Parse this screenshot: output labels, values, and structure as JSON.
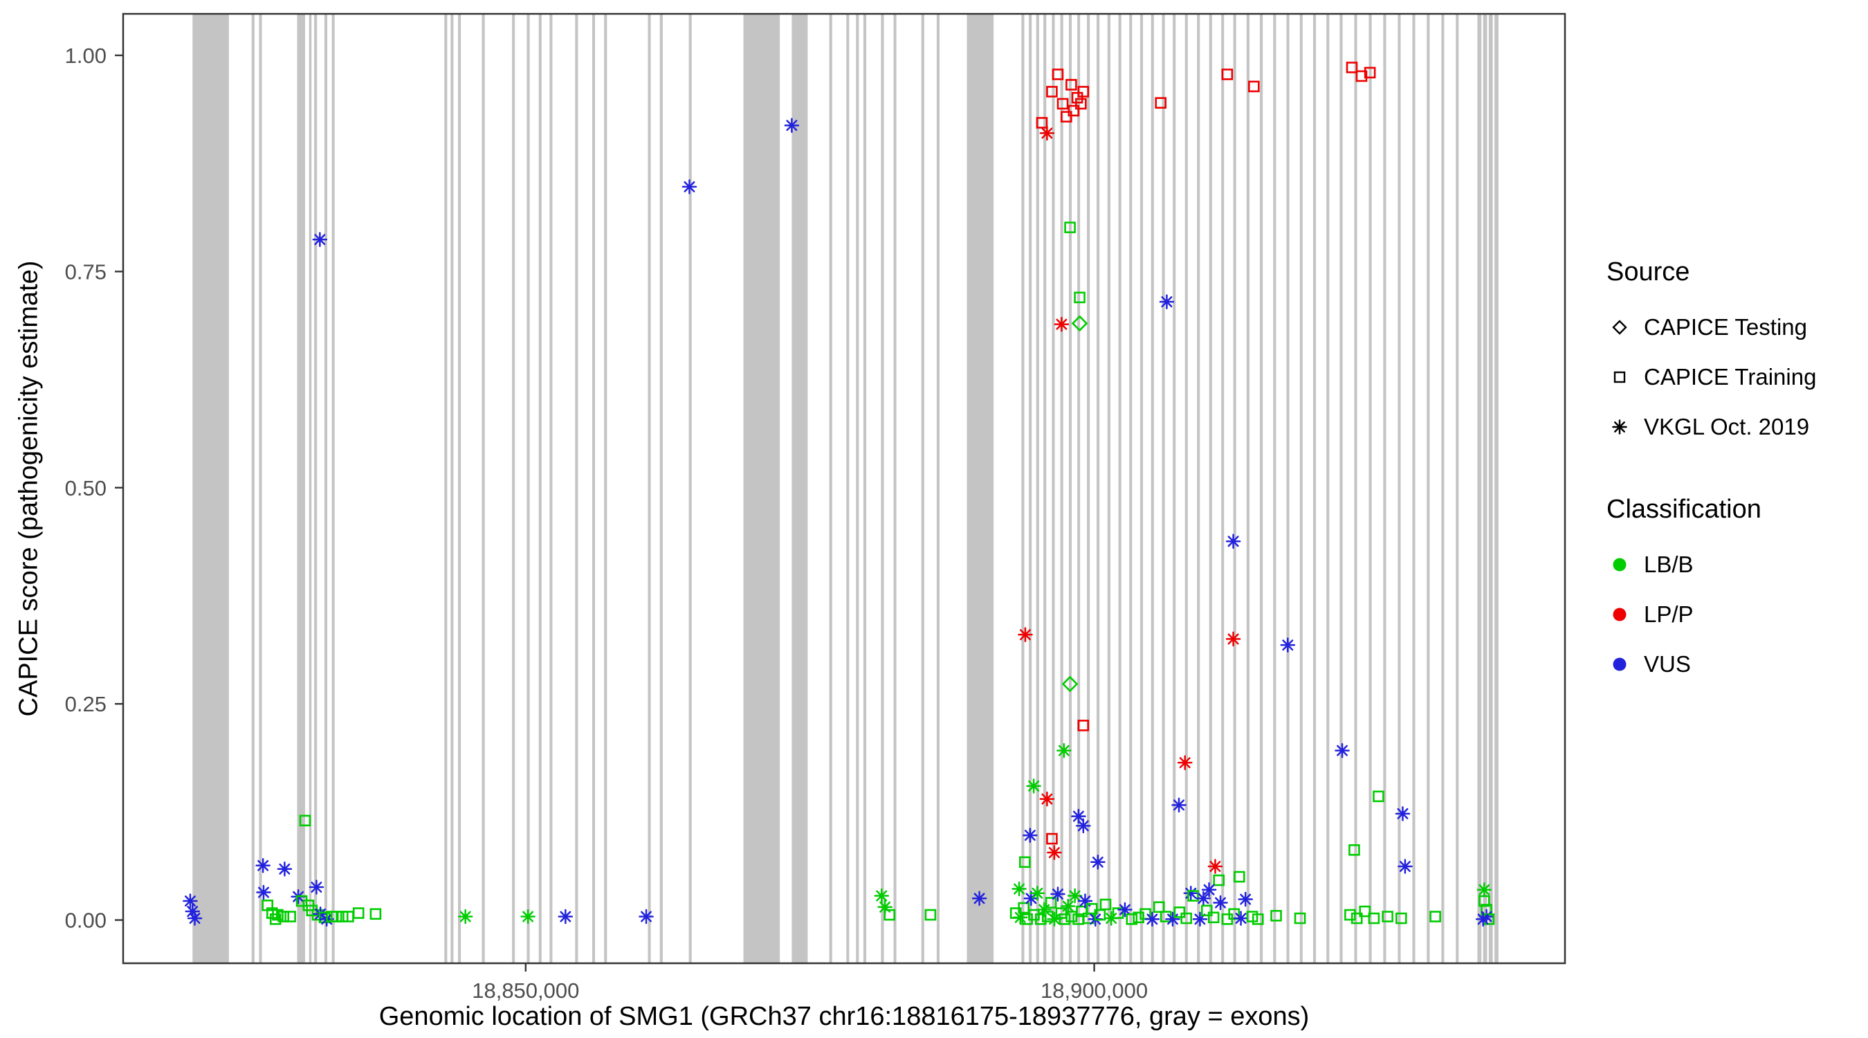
{
  "chart_data": {
    "type": "scatter",
    "title": "",
    "xlabel": "Genomic location of SMG1 (GRCh37 chr16:18816175-18937776, gray = exons)",
    "ylabel": "CAPICE score (pathogenicity estimate)",
    "x_domain": [
      18814600,
      18941400
    ],
    "y_domain": [
      -0.05,
      1.048
    ],
    "x_ticks": [
      {
        "value": 18850000,
        "label": "18,850,000"
      },
      {
        "value": 18900000,
        "label": "18,900,000"
      }
    ],
    "y_ticks": [
      {
        "value": 0.0,
        "label": "0.00"
      },
      {
        "value": 0.25,
        "label": "0.25"
      },
      {
        "value": 0.5,
        "label": "0.50"
      },
      {
        "value": 0.75,
        "label": "0.75"
      },
      {
        "value": 1.0,
        "label": "1.00"
      }
    ],
    "grid": false,
    "legend_position": "right",
    "exon_color": "#C4C4C4",
    "classification_colors": {
      "LB/B": "#00CC00",
      "LP/P": "#EE0000",
      "VUS": "#2222DD"
    },
    "class_codes": {
      "g": "LB/B",
      "r": "LP/P",
      "b": "VUS"
    },
    "shape_codes": {
      "d": "CAPICE Testing (diamond)",
      "s": "CAPICE Training (square)",
      "a": "VKGL Oct. 2019 (asterisk)"
    },
    "point_format": [
      "genomic_position",
      "capice_score",
      "shape_code",
      "class_code"
    ],
    "exons": [
      [
        18820700,
        18823900
      ],
      [
        18825900,
        18826150
      ],
      [
        18826550,
        18826800
      ],
      [
        18829900,
        18830600
      ],
      [
        18830950,
        18831150
      ],
      [
        18831400,
        18831650
      ],
      [
        18832300,
        18832550
      ],
      [
        18832950,
        18833200
      ],
      [
        18842850,
        18843100
      ],
      [
        18843400,
        18843650
      ],
      [
        18844050,
        18844300
      ],
      [
        18846150,
        18846400
      ],
      [
        18848800,
        18849050
      ],
      [
        18850100,
        18850350
      ],
      [
        18851150,
        18851400
      ],
      [
        18852100,
        18852350
      ],
      [
        18854350,
        18854600
      ],
      [
        18855850,
        18856100
      ],
      [
        18856900,
        18857150
      ],
      [
        18860750,
        18861000
      ],
      [
        18861800,
        18862050
      ],
      [
        18864350,
        18864600
      ],
      [
        18869150,
        18872350
      ],
      [
        18873400,
        18874800
      ],
      [
        18876700,
        18876950
      ],
      [
        18878200,
        18878450
      ],
      [
        18879050,
        18879300
      ],
      [
        18879700,
        18879950
      ],
      [
        18881250,
        18881500
      ],
      [
        18882350,
        18882600
      ],
      [
        18884800,
        18885050
      ],
      [
        18886150,
        18886400
      ],
      [
        18888800,
        18891150
      ],
      [
        18893600,
        18893850
      ],
      [
        18894250,
        18894500
      ],
      [
        18894900,
        18895150
      ],
      [
        18895530,
        18895780
      ],
      [
        18896280,
        18896530
      ],
      [
        18897020,
        18897270
      ],
      [
        18897770,
        18898020
      ],
      [
        18898510,
        18898760
      ],
      [
        18899360,
        18899610
      ],
      [
        18900210,
        18900460
      ],
      [
        18901170,
        18901420
      ],
      [
        18902130,
        18902380
      ],
      [
        18903080,
        18903330
      ],
      [
        18904040,
        18904290
      ],
      [
        18905000,
        18905250
      ],
      [
        18905960,
        18906210
      ],
      [
        18906910,
        18907160
      ],
      [
        18907980,
        18908230
      ],
      [
        18909040,
        18909290
      ],
      [
        18910110,
        18910360
      ],
      [
        18911170,
        18911420
      ],
      [
        18912230,
        18912480
      ],
      [
        18913400,
        18913650
      ],
      [
        18914570,
        18914820
      ],
      [
        18915740,
        18915990
      ],
      [
        18916910,
        18917160
      ],
      [
        18918080,
        18918330
      ],
      [
        18919250,
        18919500
      ],
      [
        18920420,
        18920670
      ],
      [
        18921590,
        18921840
      ],
      [
        18922870,
        18923120
      ],
      [
        18924150,
        18924400
      ],
      [
        18925420,
        18925670
      ],
      [
        18926700,
        18926950
      ],
      [
        18927980,
        18928230
      ],
      [
        18929250,
        18929500
      ],
      [
        18930530,
        18930780
      ],
      [
        18931800,
        18932050
      ],
      [
        18933700,
        18934050
      ],
      [
        18934200,
        18934550
      ],
      [
        18934700,
        18935050
      ],
      [
        18935200,
        18935550
      ]
    ],
    "points": [
      [
        18820500,
        0.022,
        "a",
        "b"
      ],
      [
        18820700,
        0.01,
        "a",
        "b"
      ],
      [
        18820900,
        0.002,
        "a",
        "b"
      ],
      [
        18826900,
        0.063,
        "a",
        "b"
      ],
      [
        18828800,
        0.059,
        "a",
        "b"
      ],
      [
        18826950,
        0.032,
        "a",
        "b"
      ],
      [
        18827300,
        0.017,
        "s",
        "g"
      ],
      [
        18827700,
        0.008,
        "s",
        "g"
      ],
      [
        18828200,
        0.006,
        "s",
        "g"
      ],
      [
        18828700,
        0.004,
        "s",
        "g"
      ],
      [
        18829300,
        0.004,
        "s",
        "g"
      ],
      [
        18828000,
        0.001,
        "s",
        "g"
      ],
      [
        18830600,
        0.115,
        "s",
        "g"
      ],
      [
        18830000,
        0.027,
        "a",
        "b"
      ],
      [
        18830300,
        0.022,
        "s",
        "g"
      ],
      [
        18830900,
        0.017,
        "s",
        "g"
      ],
      [
        18831600,
        0.038,
        "a",
        "b"
      ],
      [
        18831200,
        0.011,
        "s",
        "g"
      ],
      [
        18831700,
        0.006,
        "s",
        "g"
      ],
      [
        18831950,
        0.007,
        "a",
        "b"
      ],
      [
        18832300,
        0.003,
        "s",
        "g"
      ],
      [
        18832500,
        0.001,
        "a",
        "b"
      ],
      [
        18832950,
        0.004,
        "s",
        "g"
      ],
      [
        18833350,
        0.004,
        "s",
        "g"
      ],
      [
        18833900,
        0.004,
        "s",
        "g"
      ],
      [
        18834400,
        0.004,
        "s",
        "g"
      ],
      [
        18835300,
        0.008,
        "s",
        "g"
      ],
      [
        18836800,
        0.007,
        "s",
        "g"
      ],
      [
        18831900,
        0.787,
        "a",
        "b"
      ],
      [
        18844700,
        0.004,
        "a",
        "g"
      ],
      [
        18850200,
        0.004,
        "a",
        "g"
      ],
      [
        18853500,
        0.004,
        "a",
        "b"
      ],
      [
        18860600,
        0.004,
        "a",
        "b"
      ],
      [
        18864400,
        0.848,
        "a",
        "b"
      ],
      [
        18873400,
        0.919,
        "a",
        "b"
      ],
      [
        18881300,
        0.028,
        "a",
        "g"
      ],
      [
        18881600,
        0.015,
        "a",
        "g"
      ],
      [
        18882000,
        0.006,
        "s",
        "g"
      ],
      [
        18885600,
        0.006,
        "s",
        "g"
      ],
      [
        18889900,
        0.025,
        "a",
        "b"
      ],
      [
        18895850,
        0.91,
        "a",
        "r"
      ],
      [
        18895400,
        0.922,
        "s",
        "r"
      ],
      [
        18896280,
        0.958,
        "s",
        "r"
      ],
      [
        18896800,
        0.978,
        "s",
        "r"
      ],
      [
        18897230,
        0.944,
        "s",
        "r"
      ],
      [
        18897550,
        0.929,
        "s",
        "r"
      ],
      [
        18897980,
        0.966,
        "s",
        "r"
      ],
      [
        18898190,
        0.936,
        "s",
        "r"
      ],
      [
        18898510,
        0.951,
        "s",
        "r"
      ],
      [
        18898830,
        0.944,
        "s",
        "r"
      ],
      [
        18899040,
        0.958,
        "s",
        "r"
      ],
      [
        18905850,
        0.945,
        "s",
        "r"
      ],
      [
        18911700,
        0.978,
        "s",
        "r"
      ],
      [
        18914040,
        0.964,
        "s",
        "r"
      ],
      [
        18922660,
        0.986,
        "s",
        "r"
      ],
      [
        18923510,
        0.976,
        "s",
        "r"
      ],
      [
        18924250,
        0.98,
        "s",
        "r"
      ],
      [
        18897870,
        0.801,
        "s",
        "g"
      ],
      [
        18898720,
        0.72,
        "s",
        "g"
      ],
      [
        18897130,
        0.689,
        "a",
        "r"
      ],
      [
        18898720,
        0.69,
        "d",
        "g"
      ],
      [
        18897870,
        0.273,
        "d",
        "g"
      ],
      [
        18899040,
        0.225,
        "s",
        "r"
      ],
      [
        18897340,
        0.196,
        "a",
        "g"
      ],
      [
        18894680,
        0.155,
        "a",
        "g"
      ],
      [
        18893940,
        0.33,
        "a",
        "r"
      ],
      [
        18895850,
        0.14,
        "a",
        "r"
      ],
      [
        18894360,
        0.098,
        "a",
        "b"
      ],
      [
        18896280,
        0.094,
        "s",
        "r"
      ],
      [
        18896490,
        0.078,
        "a",
        "r"
      ],
      [
        18898620,
        0.12,
        "a",
        "b"
      ],
      [
        18899040,
        0.109,
        "a",
        "b"
      ],
      [
        18900320,
        0.067,
        "a",
        "b"
      ],
      [
        18893400,
        0.036,
        "a",
        "g"
      ],
      [
        18893900,
        0.067,
        "s",
        "g"
      ],
      [
        18906380,
        0.715,
        "a",
        "b"
      ],
      [
        18912230,
        0.438,
        "a",
        "b"
      ],
      [
        18912230,
        0.325,
        "a",
        "r"
      ],
      [
        18917020,
        0.318,
        "a",
        "b"
      ],
      [
        18907980,
        0.182,
        "a",
        "r"
      ],
      [
        18907450,
        0.133,
        "a",
        "b"
      ],
      [
        18921810,
        0.196,
        "a",
        "b"
      ],
      [
        18927130,
        0.123,
        "a",
        "b"
      ],
      [
        18927340,
        0.062,
        "a",
        "b"
      ],
      [
        18925000,
        0.143,
        "s",
        "g"
      ],
      [
        18922870,
        0.081,
        "s",
        "g"
      ],
      [
        18910640,
        0.062,
        "a",
        "r"
      ],
      [
        18910960,
        0.046,
        "s",
        "g"
      ],
      [
        18912760,
        0.05,
        "s",
        "g"
      ],
      [
        18893100,
        0.008,
        "s",
        "g"
      ],
      [
        18893500,
        0.003,
        "a",
        "g"
      ],
      [
        18893800,
        0.014,
        "s",
        "g"
      ],
      [
        18894100,
        0.001,
        "s",
        "g"
      ],
      [
        18894450,
        0.025,
        "a",
        "b"
      ],
      [
        18894700,
        0.006,
        "s",
        "g"
      ],
      [
        18895000,
        0.031,
        "a",
        "g"
      ],
      [
        18895300,
        0.001,
        "s",
        "g"
      ],
      [
        18895600,
        0.012,
        "a",
        "g"
      ],
      [
        18895900,
        0.004,
        "s",
        "g"
      ],
      [
        18896200,
        0.02,
        "s",
        "g"
      ],
      [
        18896500,
        0.001,
        "a",
        "g"
      ],
      [
        18896800,
        0.03,
        "a",
        "b"
      ],
      [
        18897100,
        0.008,
        "s",
        "g"
      ],
      [
        18897400,
        0.001,
        "s",
        "g"
      ],
      [
        18897700,
        0.016,
        "a",
        "g"
      ],
      [
        18898000,
        0.004,
        "s",
        "g"
      ],
      [
        18898300,
        0.028,
        "a",
        "g"
      ],
      [
        18898600,
        0.001,
        "s",
        "g"
      ],
      [
        18898900,
        0.01,
        "s",
        "g"
      ],
      [
        18899200,
        0.022,
        "a",
        "b"
      ],
      [
        18899500,
        0.002,
        "s",
        "g"
      ],
      [
        18899800,
        0.013,
        "s",
        "g"
      ],
      [
        18900100,
        0.001,
        "a",
        "b"
      ],
      [
        18900500,
        0.006,
        "s",
        "g"
      ],
      [
        18901000,
        0.018,
        "s",
        "g"
      ],
      [
        18901500,
        0.002,
        "a",
        "g"
      ],
      [
        18902100,
        0.008,
        "s",
        "g"
      ],
      [
        18902700,
        0.012,
        "a",
        "b"
      ],
      [
        18903300,
        0.001,
        "s",
        "g"
      ],
      [
        18903900,
        0.003,
        "s",
        "g"
      ],
      [
        18904500,
        0.007,
        "s",
        "g"
      ],
      [
        18905100,
        0.001,
        "a",
        "b"
      ],
      [
        18905700,
        0.015,
        "s",
        "g"
      ],
      [
        18906300,
        0.004,
        "s",
        "g"
      ],
      [
        18906900,
        0.001,
        "a",
        "b"
      ],
      [
        18907500,
        0.009,
        "s",
        "g"
      ],
      [
        18908100,
        0.002,
        "s",
        "g"
      ],
      [
        18908500,
        0.031,
        "a",
        "b"
      ],
      [
        18908700,
        0.028,
        "s",
        "g"
      ],
      [
        18909300,
        0.001,
        "a",
        "b"
      ],
      [
        18909600,
        0.025,
        "a",
        "b"
      ],
      [
        18909900,
        0.011,
        "s",
        "g"
      ],
      [
        18910100,
        0.035,
        "a",
        "b"
      ],
      [
        18910500,
        0.003,
        "s",
        "g"
      ],
      [
        18911100,
        0.02,
        "a",
        "b"
      ],
      [
        18911700,
        0.001,
        "s",
        "g"
      ],
      [
        18912300,
        0.007,
        "s",
        "g"
      ],
      [
        18912900,
        0.002,
        "a",
        "b"
      ],
      [
        18913300,
        0.024,
        "a",
        "b"
      ],
      [
        18913900,
        0.004,
        "s",
        "g"
      ],
      [
        18914400,
        0.001,
        "s",
        "g"
      ],
      [
        18916000,
        0.005,
        "s",
        "g"
      ],
      [
        18918100,
        0.002,
        "s",
        "g"
      ],
      [
        18922500,
        0.006,
        "s",
        "g"
      ],
      [
        18923100,
        0.002,
        "s",
        "g"
      ],
      [
        18923800,
        0.01,
        "s",
        "g"
      ],
      [
        18924600,
        0.002,
        "s",
        "g"
      ],
      [
        18925800,
        0.004,
        "s",
        "g"
      ],
      [
        18927000,
        0.002,
        "s",
        "g"
      ],
      [
        18930000,
        0.004,
        "s",
        "g"
      ],
      [
        18934300,
        0.035,
        "a",
        "g"
      ],
      [
        18934300,
        0.022,
        "s",
        "g"
      ],
      [
        18934500,
        0.012,
        "s",
        "g"
      ],
      [
        18934500,
        0.004,
        "a",
        "b"
      ],
      [
        18934700,
        0.001,
        "s",
        "g"
      ],
      [
        18934200,
        0.001,
        "a",
        "b"
      ]
    ]
  },
  "legend": {
    "source": {
      "title": "Source",
      "items": [
        {
          "shape": "diamond",
          "label": "CAPICE Testing"
        },
        {
          "shape": "square",
          "label": "CAPICE Training"
        },
        {
          "shape": "asterisk",
          "label": "VKGL Oct. 2019"
        }
      ]
    },
    "classification": {
      "title": "Classification",
      "items": [
        {
          "label": "LB/B",
          "color": "#00CC00"
        },
        {
          "label": "LP/P",
          "color": "#EE0000"
        },
        {
          "label": "VUS",
          "color": "#2222DD"
        }
      ]
    }
  }
}
